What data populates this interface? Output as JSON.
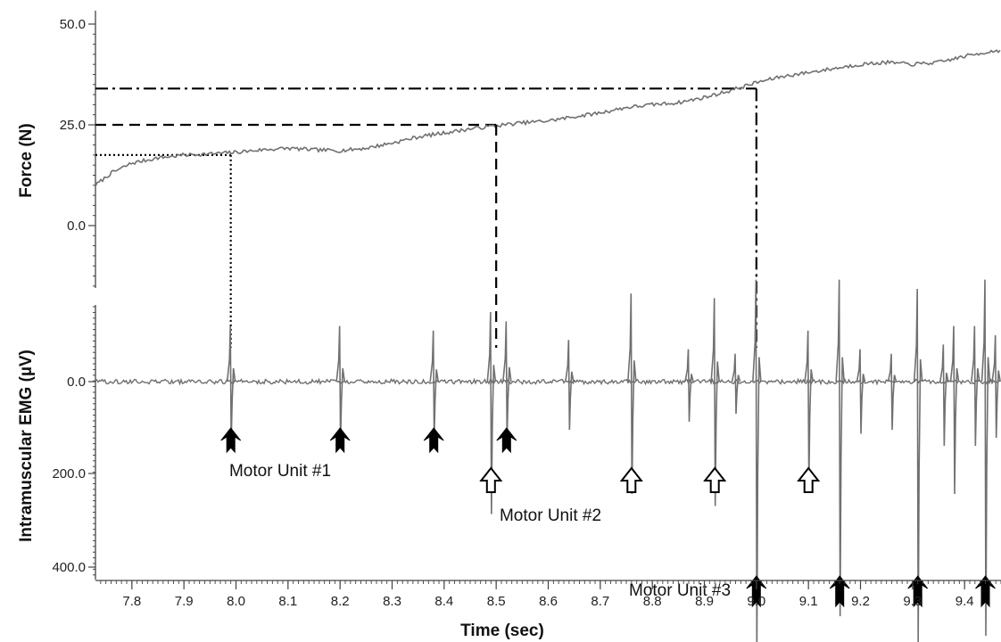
{
  "chart_data": [
    {
      "panel": "force",
      "type": "line",
      "ylabel": "Force (N)",
      "yticks": [
        "0.0",
        "25.0",
        "50.0"
      ],
      "ylim": [
        -15,
        52
      ],
      "xlim": [
        7.73,
        9.47
      ],
      "series": [
        {
          "x": [
            7.73,
            7.76,
            7.8,
            7.85,
            7.9,
            7.95,
            8.0,
            8.05,
            8.1,
            8.15,
            8.2,
            8.25,
            8.3,
            8.35,
            8.4,
            8.45,
            8.5,
            8.55,
            8.6,
            8.65,
            8.7,
            8.75,
            8.8,
            8.85,
            8.9,
            8.95,
            9.0,
            9.05,
            9.1,
            9.15,
            9.2,
            9.25,
            9.3,
            9.35,
            9.4,
            9.45,
            9.47
          ],
          "values": [
            10,
            13,
            15.5,
            16.8,
            17.5,
            17.8,
            18.2,
            18.8,
            19.2,
            18.8,
            18.6,
            19.2,
            20.5,
            22,
            23,
            24,
            24.8,
            25.5,
            26,
            27,
            28,
            29.3,
            30,
            30.5,
            31.8,
            33.5,
            35.5,
            37,
            38,
            39,
            40,
            40.5,
            40,
            40.5,
            42,
            43.2,
            43.5
          ]
        }
      ],
      "reference_lines": [
        {
          "style": "dotted",
          "force": 17.5,
          "time": 7.99
        },
        {
          "style": "dashed",
          "force": 25,
          "time": 8.5
        },
        {
          "style": "dash-dot",
          "force": 34,
          "time": 9.0
        }
      ]
    },
    {
      "panel": "emg",
      "type": "line",
      "ylabel": "Intramuscular EMG (µV)",
      "yticks": [
        "0.0",
        "200.0",
        "400.0"
      ],
      "ylim": [
        400,
        -220
      ],
      "xlabel": "Time (sec)",
      "xticks": [
        "7.8",
        "7.9",
        "8.0",
        "8.1",
        "8.2",
        "8.3",
        "8.4",
        "8.5",
        "8.6",
        "8.7",
        "8.8",
        "8.9",
        "9.0",
        "9.1",
        "9.2",
        "9.3",
        "9.4"
      ],
      "spikes": [
        {
          "t": 7.99,
          "up": 60,
          "down": 75
        },
        {
          "t": 8.2,
          "up": 60,
          "down": 75
        },
        {
          "t": 8.38,
          "up": 55,
          "down": 70
        },
        {
          "t": 8.49,
          "up": 75,
          "down": 165
        },
        {
          "t": 8.52,
          "up": 65,
          "down": 70
        },
        {
          "t": 8.64,
          "up": 45,
          "down": 60
        },
        {
          "t": 8.76,
          "up": 95,
          "down": 140
        },
        {
          "t": 8.87,
          "up": 35,
          "down": 50
        },
        {
          "t": 8.92,
          "up": 90,
          "down": 155
        },
        {
          "t": 8.96,
          "up": 30,
          "down": 40
        },
        {
          "t": 9.0,
          "up": 110,
          "down": 345
        },
        {
          "t": 9.1,
          "up": 55,
          "down": 130
        },
        {
          "t": 9.16,
          "up": 110,
          "down": 295
        },
        {
          "t": 9.2,
          "up": 35,
          "down": 65
        },
        {
          "t": 9.26,
          "up": 30,
          "down": 60
        },
        {
          "t": 9.31,
          "up": 100,
          "down": 330
        },
        {
          "t": 9.36,
          "up": 40,
          "down": 80
        },
        {
          "t": 9.38,
          "up": 60,
          "down": 140
        },
        {
          "t": 9.42,
          "up": 60,
          "down": 80
        },
        {
          "t": 9.44,
          "up": 110,
          "down": 320
        },
        {
          "t": 9.46,
          "up": 50,
          "down": 70
        }
      ]
    }
  ],
  "motor_units": [
    {
      "label": "Motor Unit #1",
      "arrow": "filled",
      "times": [
        7.99,
        8.2,
        8.38,
        8.52
      ]
    },
    {
      "label": "Motor Unit #2",
      "arrow": "open",
      "times": [
        8.49,
        8.76,
        8.92,
        9.1
      ]
    },
    {
      "label": "Motor Unit #3",
      "arrow": "filled",
      "times": [
        9.0,
        9.16,
        9.31,
        9.44
      ]
    }
  ],
  "colors": {
    "trace": "#707070",
    "axis": "#444444",
    "ref_lines": "#000000",
    "arrows": "#000000"
  }
}
